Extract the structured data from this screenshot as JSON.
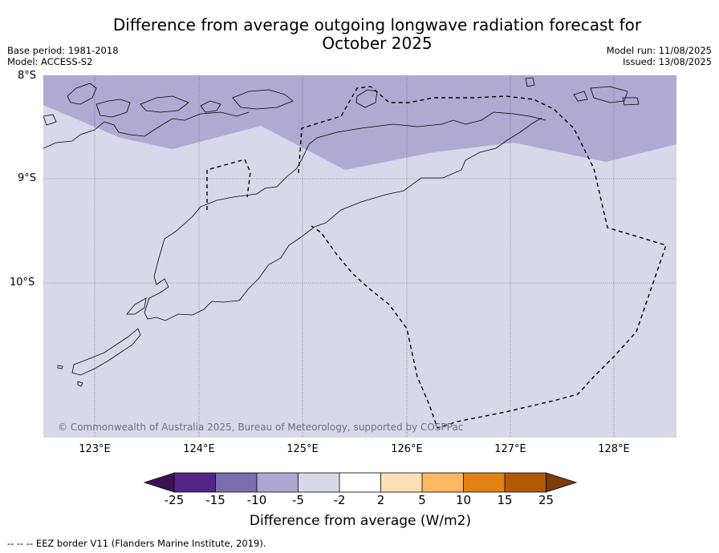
{
  "title": "Difference from average outgoing longwave radiation forecast for October 2025",
  "title_line1": "Difference from average outgoing longwave radiation forecast for",
  "title_line2": "October 2025",
  "meta_left": {
    "base_period": "Base period: 1981-2018",
    "model": "Model: ACCESS-S2"
  },
  "meta_right": {
    "model_run": "Model run: 11/08/2025",
    "issued": "Issued: 13/08/2025"
  },
  "map": {
    "lat_labels": [
      "8°S",
      "9°S",
      "10°S"
    ],
    "lon_labels": [
      "123°E",
      "124°E",
      "125°E",
      "126°E",
      "127°E",
      "128°E"
    ],
    "extent": {
      "lon_min": 122.5,
      "lon_max": 128.6,
      "lat_min": -11.5,
      "lat_max": -8.0
    },
    "fill_categories": [
      "-10 to -5",
      "-5 to -2"
    ],
    "copyright": "© Commonwealth of Australia 2025, Bureau of Meteorology, supported by COSPPac"
  },
  "colorbar": {
    "ticks": [
      "-25",
      "-15",
      "-10",
      "-5",
      "-2",
      "2",
      "5",
      "10",
      "15",
      "25"
    ],
    "colors": [
      "#3b1055",
      "#522686",
      "#7b6cac",
      "#ada6d1",
      "#d8d8ea",
      "#ffffff",
      "#fde0b6",
      "#fdb863",
      "#e08214",
      "#b35806",
      "#7f3b08"
    ],
    "label": "Difference from average (W/m2)"
  },
  "footer": "--  --  -- EEZ border V11 (Flanders Marine Institute, 2019)."
}
